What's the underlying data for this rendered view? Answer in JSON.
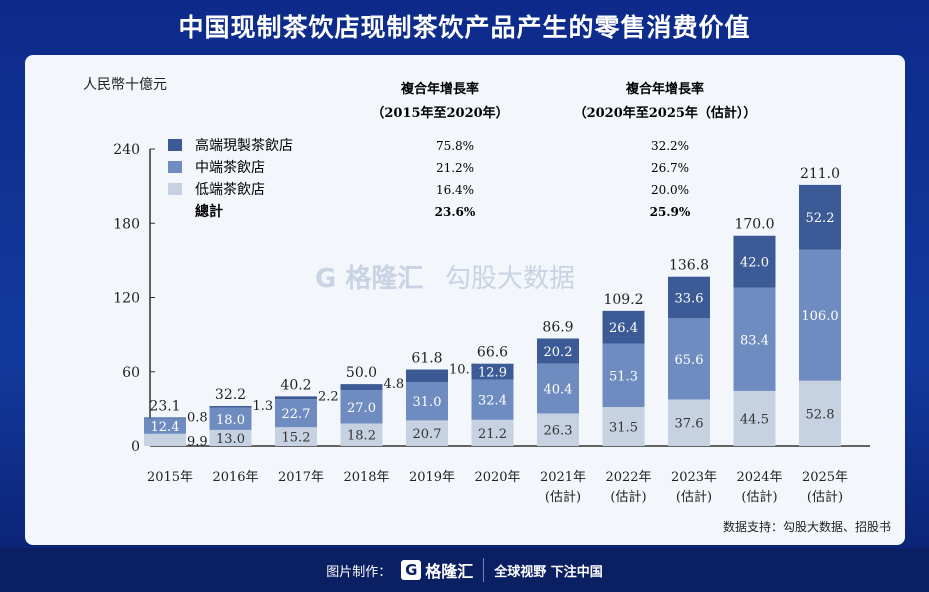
{
  "title": "中国现制茶饮店现制茶饮产品产生的零售消费价值",
  "source": "数据支持：勾股大数据、招股书",
  "footer": {
    "made_by": "图片制作：",
    "logo": "格隆汇",
    "slogan": "全球视野 下注中国"
  },
  "watermark": {
    "left": "格隆汇",
    "right": "勾股大数据"
  },
  "colors": {
    "high": "#3b5a96",
    "mid": "#6f8cc0",
    "low": "#c6d2e2"
  },
  "cagr": {
    "header1": [
      "複合年增長率",
      "（2015年至2020年）"
    ],
    "header2": [
      "複合年增長率",
      "（2020年至2025年（估計））"
    ],
    "rows": [
      {
        "label": "高端現製茶飲店",
        "c1": "75.8%",
        "c2": "32.2%"
      },
      {
        "label": "中端茶飲店",
        "c1": "21.2%",
        "c2": "26.7%"
      },
      {
        "label": "低端茶飲店",
        "c1": "16.4%",
        "c2": "20.0%"
      },
      {
        "label": "總計",
        "c1": "23.6%",
        "c2": "25.9%"
      }
    ]
  },
  "chart_data": {
    "type": "bar",
    "stacked": true,
    "ylabel": "人民幣十億元",
    "ylim": [
      0,
      240
    ],
    "yticks": [
      0,
      60,
      120,
      180,
      240
    ],
    "categories": [
      "2015年",
      "2016年",
      "2017年",
      "2018年",
      "2019年",
      "2020年",
      "2021年",
      "2022年",
      "2023年",
      "2024年",
      "2025年"
    ],
    "category_sub": [
      "",
      "",
      "",
      "",
      "",
      "",
      "(估計)",
      "(估計)",
      "(估計)",
      "(估計)",
      "(估計)"
    ],
    "series": [
      {
        "name": "低端茶飲店",
        "values": [
          9.9,
          13.0,
          15.2,
          18.2,
          20.7,
          21.2,
          26.3,
          31.5,
          37.6,
          44.5,
          52.8
        ]
      },
      {
        "name": "中端茶飲店",
        "values": [
          12.4,
          18.0,
          22.7,
          27.0,
          31.0,
          32.4,
          40.4,
          51.3,
          65.6,
          83.4,
          106.0
        ]
      },
      {
        "name": "高端現製茶飲店",
        "values": [
          0.8,
          1.3,
          2.2,
          4.8,
          10.1,
          12.9,
          20.2,
          26.4,
          33.6,
          42.0,
          52.2
        ]
      }
    ],
    "totals": [
      "23.1",
      "32.2",
      "40.2",
      "50.0",
      "61.8",
      "66.6",
      "86.9",
      "109.2",
      "136.8",
      "170.0",
      "211.0"
    ]
  }
}
